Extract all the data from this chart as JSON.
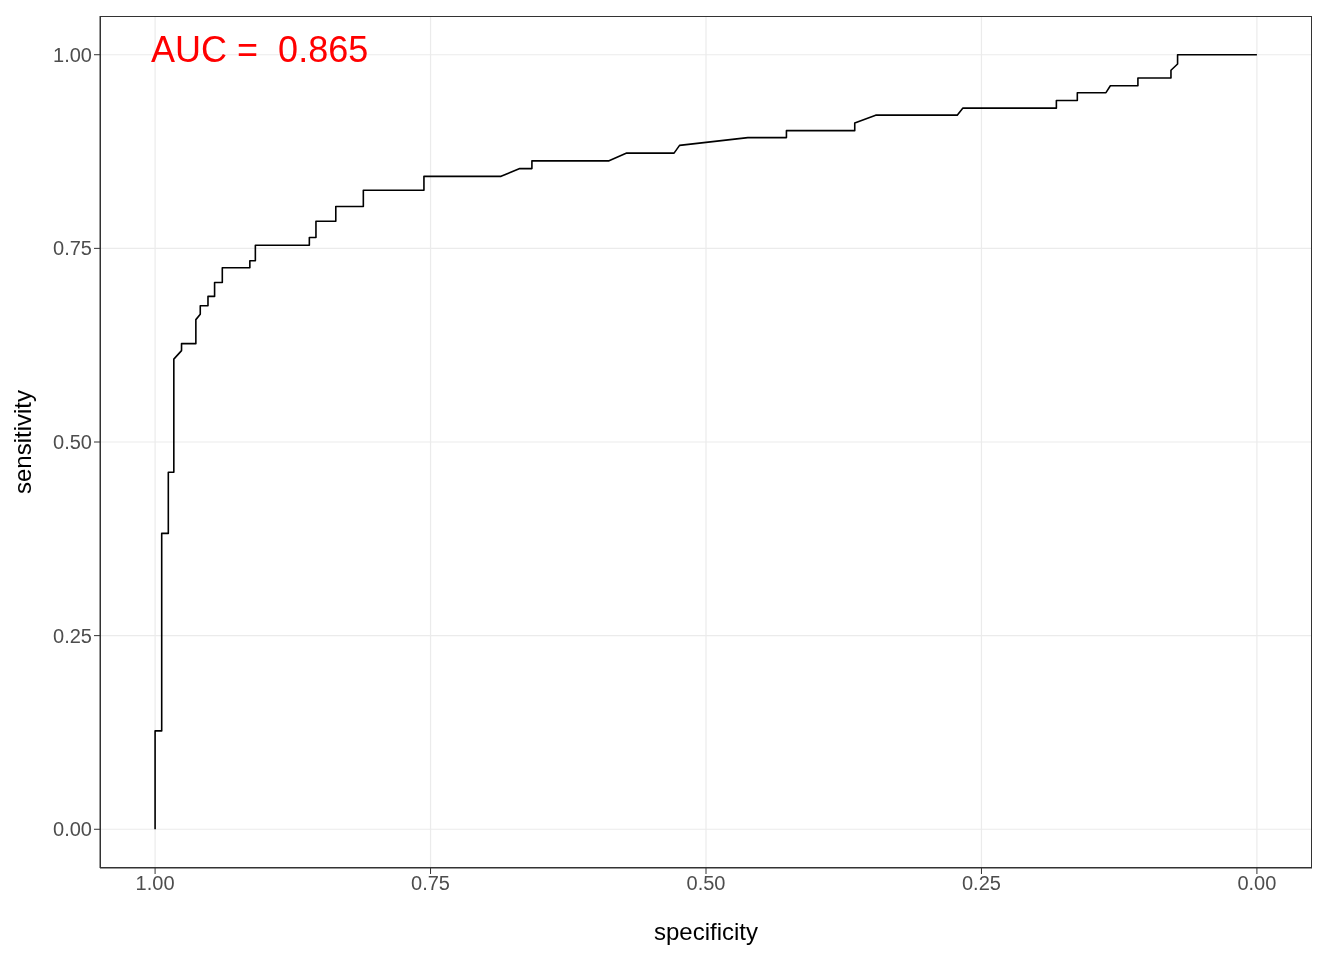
{
  "chart_data": {
    "type": "line",
    "xlabel": "specificity",
    "ylabel": "sensitivity",
    "annotations": [
      "AUC =  0.865"
    ],
    "x": [
      1.0,
      1.0,
      0.994,
      0.994,
      0.988,
      0.988,
      0.983,
      0.983,
      0.976,
      0.976,
      0.963,
      0.963,
      0.959,
      0.959,
      0.952,
      0.952,
      0.946,
      0.946,
      0.939,
      0.939,
      0.914,
      0.914,
      0.909,
      0.909,
      0.86,
      0.86,
      0.854,
      0.854,
      0.836,
      0.836,
      0.811,
      0.811,
      0.756,
      0.756,
      0.686,
      0.669,
      0.658,
      0.658,
      0.588,
      0.572,
      0.529,
      0.524,
      0.462,
      0.427,
      0.427,
      0.365,
      0.365,
      0.346,
      0.272,
      0.267,
      0.182,
      0.182,
      0.163,
      0.163,
      0.137,
      0.133,
      0.108,
      0.108,
      0.078,
      0.078,
      0.072,
      0.072,
      0.0
    ],
    "series": [
      {
        "color": "#000000",
        "values": [
          0.0,
          0.127,
          0.127,
          0.382,
          0.382,
          0.461,
          0.461,
          0.607,
          0.618,
          0.627,
          0.627,
          0.658,
          0.665,
          0.676,
          0.676,
          0.688,
          0.688,
          0.706,
          0.706,
          0.725,
          0.725,
          0.734,
          0.734,
          0.754,
          0.754,
          0.764,
          0.764,
          0.785,
          0.785,
          0.804,
          0.804,
          0.825,
          0.825,
          0.843,
          0.843,
          0.853,
          0.853,
          0.863,
          0.863,
          0.873,
          0.873,
          0.883,
          0.893,
          0.893,
          0.902,
          0.902,
          0.912,
          0.922,
          0.922,
          0.931,
          0.931,
          0.941,
          0.941,
          0.951,
          0.951,
          0.96,
          0.96,
          0.97,
          0.97,
          0.98,
          0.988,
          1.0,
          1.0
        ]
      }
    ],
    "xlim": [
      1.05,
      -0.05
    ],
    "xticks": [
      {
        "value": 1,
        "label": "1.00"
      },
      {
        "value": 0.75,
        "label": "0.75"
      },
      {
        "value": 0.5,
        "label": "0.50"
      },
      {
        "value": 0.25,
        "label": "0.25"
      },
      {
        "value": 0,
        "label": "0.00"
      }
    ],
    "ylim": [
      -0.05,
      1.05
    ],
    "yticks": [
      {
        "value": 0,
        "label": "0.00"
      },
      {
        "value": 0.25,
        "label": "0.25"
      },
      {
        "value": 0.5,
        "label": "0.50"
      },
      {
        "value": 0.75,
        "label": "0.75"
      },
      {
        "value": 1,
        "label": "1.00"
      }
    ],
    "grid": true,
    "marker": "none",
    "line_style": "solid",
    "legend": false
  }
}
